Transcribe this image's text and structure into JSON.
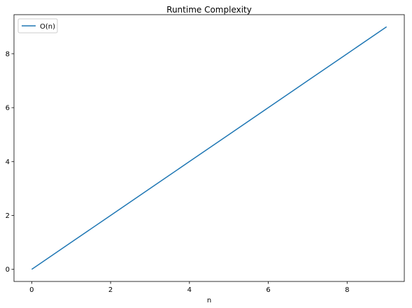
{
  "chart_data": {
    "type": "line",
    "title": "Runtime Complexity",
    "xlabel": "n",
    "ylabel": "",
    "xlim": [
      -0.45,
      9.45
    ],
    "ylim": [
      -0.45,
      9.45
    ],
    "xticks": [
      0,
      2,
      4,
      6,
      8
    ],
    "yticks": [
      0,
      2,
      4,
      6,
      8
    ],
    "grid": false,
    "legend_position": "top-left",
    "series": [
      {
        "name": "O(n)",
        "color": "#1f77b4",
        "x": [
          0,
          1,
          2,
          3,
          4,
          5,
          6,
          7,
          8,
          9
        ],
        "y": [
          0,
          1,
          2,
          3,
          4,
          5,
          6,
          7,
          8,
          9
        ]
      }
    ]
  }
}
